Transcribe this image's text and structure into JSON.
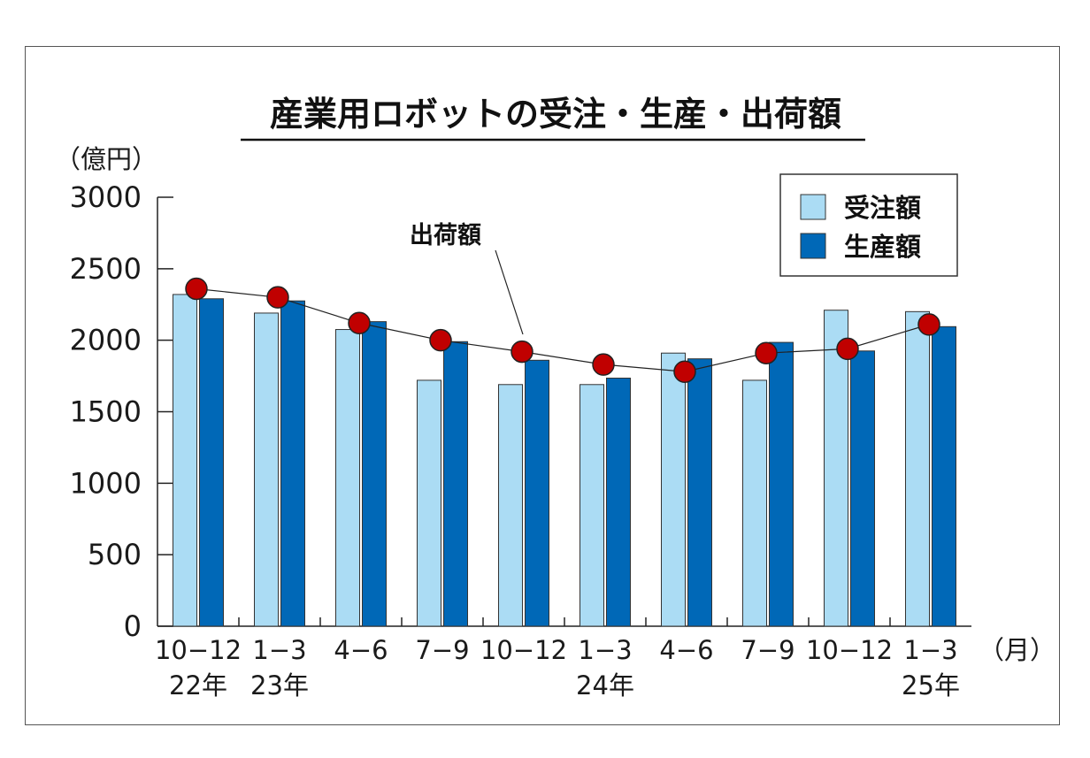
{
  "chart_data": {
    "type": "bar",
    "title": "産業用ロボットの受注・生産・出荷額",
    "ylabel": "（億円）",
    "xunit": "（月）",
    "ylim": [
      0,
      3000
    ],
    "yticks": [
      "3000",
      "2500",
      "2000",
      "1500",
      "1000",
      "500",
      "0"
    ],
    "ytick_values": [
      3000,
      2500,
      2000,
      1500,
      1000,
      500,
      0
    ],
    "categories": [
      "10−12",
      "1−3",
      "4−6",
      "7−9",
      "10−12",
      "1−3",
      "4−6",
      "7−9",
      "10−12",
      "1−3"
    ],
    "year_labels": [
      "22年",
      "23年",
      "",
      "",
      "",
      "24年",
      "",
      "",
      "",
      "25年"
    ],
    "series": [
      {
        "name": "受注額",
        "type": "bar",
        "color": "#abdcf4",
        "values": [
          2320,
          2190,
          2075,
          1720,
          1690,
          1690,
          1910,
          1720,
          2210,
          2200
        ]
      },
      {
        "name": "生産額",
        "type": "bar",
        "color": "#0068b7",
        "values": [
          2290,
          2275,
          2130,
          1990,
          1860,
          1735,
          1870,
          1985,
          1925,
          2095
        ]
      },
      {
        "name": "出荷額",
        "type": "line",
        "color": "#c00000",
        "values": [
          2360,
          2300,
          2120,
          2000,
          1920,
          1830,
          1780,
          1910,
          1940,
          2110
        ]
      }
    ],
    "annotation": "出荷額",
    "legend": {
      "position": "top-right",
      "items": [
        "受注額",
        "生産額"
      ]
    },
    "grid": false
  }
}
